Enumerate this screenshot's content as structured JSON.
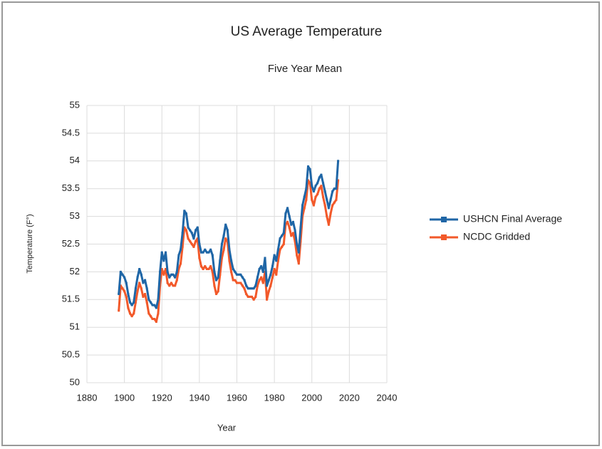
{
  "chart_data": {
    "type": "line",
    "title": "US Average Temperature",
    "subtitle": "Five Year Mean",
    "x_label": "Year",
    "y_label": "Temperature (F°)",
    "x": [
      1897,
      1898,
      1899,
      1900,
      1901,
      1902,
      1903,
      1904,
      1905,
      1906,
      1907,
      1908,
      1909,
      1910,
      1911,
      1912,
      1913,
      1914,
      1915,
      1916,
      1917,
      1918,
      1919,
      1920,
      1921,
      1922,
      1923,
      1924,
      1925,
      1926,
      1927,
      1928,
      1929,
      1930,
      1931,
      1932,
      1933,
      1934,
      1935,
      1936,
      1937,
      1938,
      1939,
      1940,
      1941,
      1942,
      1943,
      1944,
      1945,
      1946,
      1947,
      1948,
      1949,
      1950,
      1951,
      1952,
      1953,
      1954,
      1955,
      1956,
      1957,
      1958,
      1959,
      1960,
      1961,
      1962,
      1963,
      1964,
      1965,
      1966,
      1967,
      1968,
      1969,
      1970,
      1971,
      1972,
      1973,
      1974,
      1975,
      1976,
      1977,
      1978,
      1979,
      1980,
      1981,
      1982,
      1983,
      1984,
      1985,
      1986,
      1987,
      1988,
      1989,
      1990,
      1991,
      1992,
      1993,
      1994,
      1995,
      1996,
      1997,
      1998,
      1999,
      2000,
      2001,
      2002,
      2003,
      2004,
      2005,
      2006,
      2007,
      2008,
      2009,
      2010,
      2011,
      2012,
      2013,
      2014
    ],
    "series": [
      {
        "name": "USHCN Final Average",
        "color": "#1f66a6",
        "values": [
          51.6,
          52.0,
          51.95,
          51.9,
          51.8,
          51.6,
          51.45,
          51.4,
          51.45,
          51.7,
          51.9,
          52.05,
          51.95,
          51.8,
          51.85,
          51.7,
          51.5,
          51.45,
          51.4,
          51.4,
          51.35,
          51.5,
          52.0,
          52.35,
          52.2,
          52.35,
          52.0,
          51.9,
          51.95,
          51.95,
          51.9,
          52.0,
          52.3,
          52.4,
          52.7,
          53.1,
          53.05,
          52.8,
          52.75,
          52.7,
          52.6,
          52.75,
          52.8,
          52.5,
          52.35,
          52.35,
          52.4,
          52.35,
          52.35,
          52.4,
          52.3,
          52.0,
          51.85,
          51.9,
          52.2,
          52.5,
          52.65,
          52.85,
          52.75,
          52.4,
          52.2,
          52.05,
          52.0,
          51.95,
          51.95,
          51.95,
          51.9,
          51.85,
          51.75,
          51.7,
          51.7,
          51.7,
          51.7,
          51.75,
          51.9,
          52.05,
          52.1,
          52.0,
          52.25,
          51.75,
          51.85,
          51.95,
          52.1,
          52.3,
          52.2,
          52.4,
          52.6,
          52.65,
          52.7,
          53.05,
          53.15,
          53.0,
          52.85,
          52.9,
          52.75,
          52.5,
          52.35,
          52.8,
          53.2,
          53.35,
          53.5,
          53.9,
          53.85,
          53.55,
          53.45,
          53.55,
          53.6,
          53.7,
          53.75,
          53.6,
          53.45,
          53.3,
          53.15,
          53.3,
          53.45,
          53.5,
          53.5,
          54.0
        ]
      },
      {
        "name": "NCDC Gridded",
        "color": "#f2592a",
        "values": [
          51.3,
          51.75,
          51.7,
          51.65,
          51.55,
          51.35,
          51.25,
          51.2,
          51.25,
          51.45,
          51.65,
          51.8,
          51.7,
          51.55,
          51.6,
          51.45,
          51.25,
          51.2,
          51.15,
          51.15,
          51.1,
          51.25,
          51.75,
          52.05,
          51.95,
          52.05,
          51.8,
          51.75,
          51.8,
          51.75,
          51.75,
          51.85,
          52.05,
          52.15,
          52.45,
          52.8,
          52.75,
          52.6,
          52.55,
          52.5,
          52.45,
          52.55,
          52.6,
          52.25,
          52.1,
          52.05,
          52.1,
          52.05,
          52.05,
          52.1,
          52.0,
          51.75,
          51.6,
          51.65,
          51.95,
          52.25,
          52.4,
          52.6,
          52.55,
          52.2,
          52.0,
          51.85,
          51.85,
          51.8,
          51.8,
          51.8,
          51.75,
          51.7,
          51.6,
          51.55,
          51.55,
          51.55,
          51.5,
          51.55,
          51.75,
          51.85,
          51.9,
          51.8,
          52.0,
          51.5,
          51.65,
          51.75,
          51.9,
          52.05,
          51.95,
          52.2,
          52.4,
          52.45,
          52.5,
          52.85,
          52.9,
          52.8,
          52.65,
          52.7,
          52.55,
          52.3,
          52.15,
          52.55,
          53.0,
          53.15,
          53.3,
          53.65,
          53.6,
          53.3,
          53.2,
          53.35,
          53.4,
          53.5,
          53.55,
          53.35,
          53.2,
          53.0,
          52.85,
          53.05,
          53.2,
          53.25,
          53.3,
          53.65
        ]
      }
    ],
    "xlim": [
      1880,
      2040
    ],
    "xticks": [
      1880,
      1900,
      1920,
      1940,
      1960,
      1980,
      2000,
      2020,
      2040
    ],
    "ylim": [
      50,
      55
    ],
    "yticks": [
      50,
      50.5,
      51,
      51.5,
      52,
      52.5,
      53,
      53.5,
      54,
      54.5,
      55
    ],
    "grid": true,
    "legend": "right"
  }
}
